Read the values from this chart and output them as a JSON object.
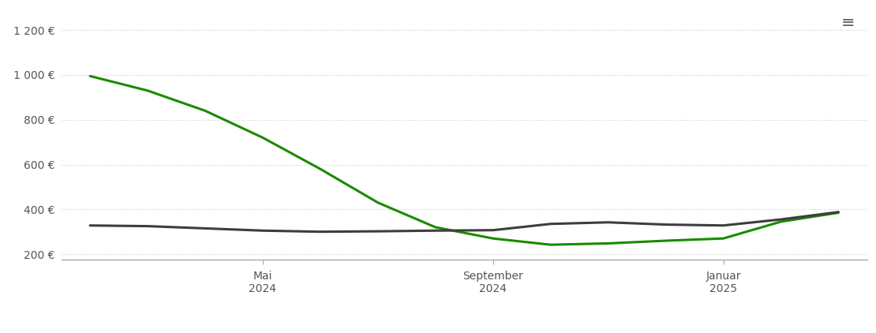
{
  "lose_ware_x": [
    0,
    1,
    2,
    3,
    4,
    5,
    6,
    7,
    8,
    9,
    10,
    11,
    12,
    13
  ],
  "lose_ware_y": [
    995,
    930,
    840,
    720,
    580,
    430,
    320,
    270,
    242,
    248,
    260,
    270,
    345,
    385
  ],
  "sack_ware_x": [
    0,
    1,
    2,
    3,
    4,
    5,
    6,
    7,
    8,
    9,
    10,
    11,
    12,
    13
  ],
  "sack_ware_y": [
    328,
    325,
    315,
    305,
    300,
    302,
    305,
    307,
    335,
    342,
    332,
    328,
    355,
    388
  ],
  "x_tick_positions": [
    3,
    7,
    11
  ],
  "x_tick_labels_line1": [
    "Mai",
    "September",
    "Januar"
  ],
  "x_tick_labels_line2": [
    "2024",
    "2024",
    "2025"
  ],
  "y_ticks": [
    200,
    400,
    600,
    800,
    1000,
    1200
  ],
  "y_tick_labels": [
    "200 €",
    "400 €",
    "600 €",
    "800 €",
    "1 000 €",
    "1 200 €"
  ],
  "ylim": [
    175,
    1290
  ],
  "xlim": [
    -0.5,
    13.5
  ],
  "line_color_lose": "#1a8a00",
  "line_color_sack": "#3d3d3d",
  "line_width": 2.2,
  "bg_color": "#ffffff",
  "grid_color": "#cccccc",
  "font_color": "#555555",
  "font_size": 10.5,
  "tick_font_size": 10,
  "menu_icon_color": "#666666"
}
